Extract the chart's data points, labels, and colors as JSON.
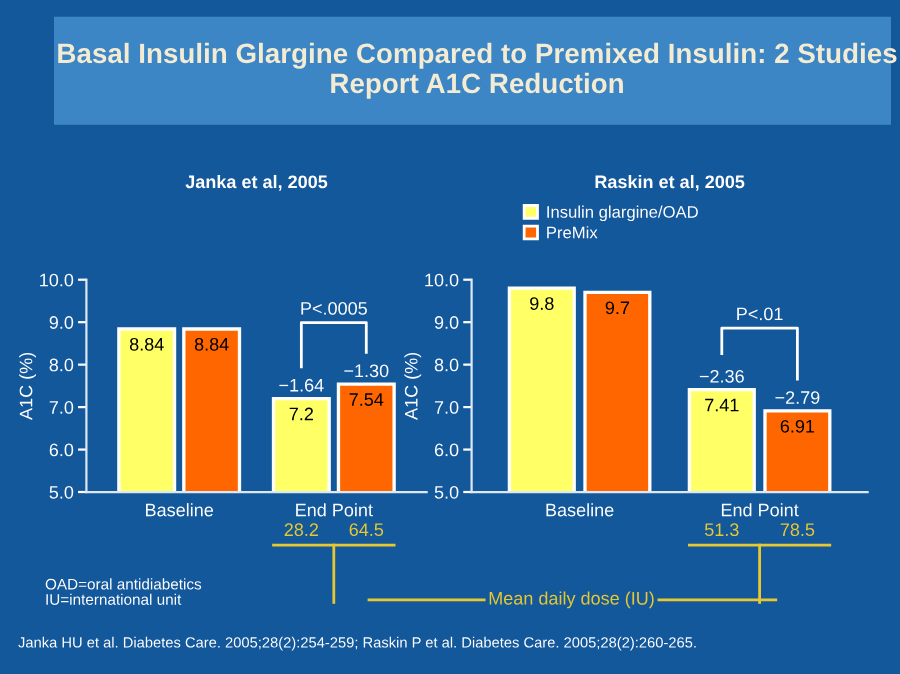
{
  "chart_data": [
    {
      "type": "bar",
      "title": "Janka et al, 2005",
      "ylabel": "A1C (%)",
      "categories": [
        "Baseline",
        "End Point"
      ],
      "series": [
        {
          "name": "Insulin glargine/OAD",
          "color": "#ffff66",
          "values": [
            8.84,
            7.2
          ]
        },
        {
          "name": "PreMix",
          "color": "#ff6600",
          "values": [
            8.84,
            7.54
          ]
        }
      ],
      "ylim": [
        5.0,
        10.0
      ],
      "yticks": [
        {
          "value": 5,
          "label": "5.0"
        },
        {
          "value": 6,
          "label": "6.0"
        },
        {
          "value": 7,
          "label": "7.0"
        },
        {
          "value": 8,
          "label": "8.0"
        },
        {
          "value": 9,
          "label": "9.0"
        },
        {
          "value": 10,
          "label": "10.0"
        }
      ],
      "data_labels": true,
      "legend": "top right",
      "grid": false,
      "annotations": [
        "−1.64",
        "−1.30",
        "P<.0005",
        "28.2",
        "64.5",
        "Basal Insulin Glargine Compared to Premixed Insulin: 2 Studies Report A1C Reduction",
        "Mean daily dose (IU)",
        "OAD=oral antidiabetics",
        "IU=international unit",
        "Janka HU et al. Diabetes Care. 2005;28(2):254-259; Raskin P et al. Diabetes Care. 2005;28(2):260-265."
      ]
    },
    {
      "type": "bar",
      "title": "Raskin et al, 2005",
      "ylabel": "A1C (%)",
      "categories": [
        "Baseline",
        "End Point"
      ],
      "series": [
        {
          "color": "#ffff66",
          "values": [
            9.8,
            7.41
          ]
        },
        {
          "color": "#ff6600",
          "values": [
            9.7,
            6.91
          ]
        }
      ],
      "ylim": [
        5.0,
        10.0
      ],
      "yticks": [
        {
          "value": 5,
          "label": "5.0"
        },
        {
          "value": 6,
          "label": "6.0"
        },
        {
          "value": 7,
          "label": "7.0"
        },
        {
          "value": 8,
          "label": "8.0"
        },
        {
          "value": 9,
          "label": "9.0"
        },
        {
          "value": 10,
          "label": "10.0"
        }
      ],
      "data_labels": true,
      "grid": false,
      "annotations": [
        "−2.36",
        "−2.79",
        "P<.01",
        "51.3",
        "78.5"
      ]
    }
  ]
}
